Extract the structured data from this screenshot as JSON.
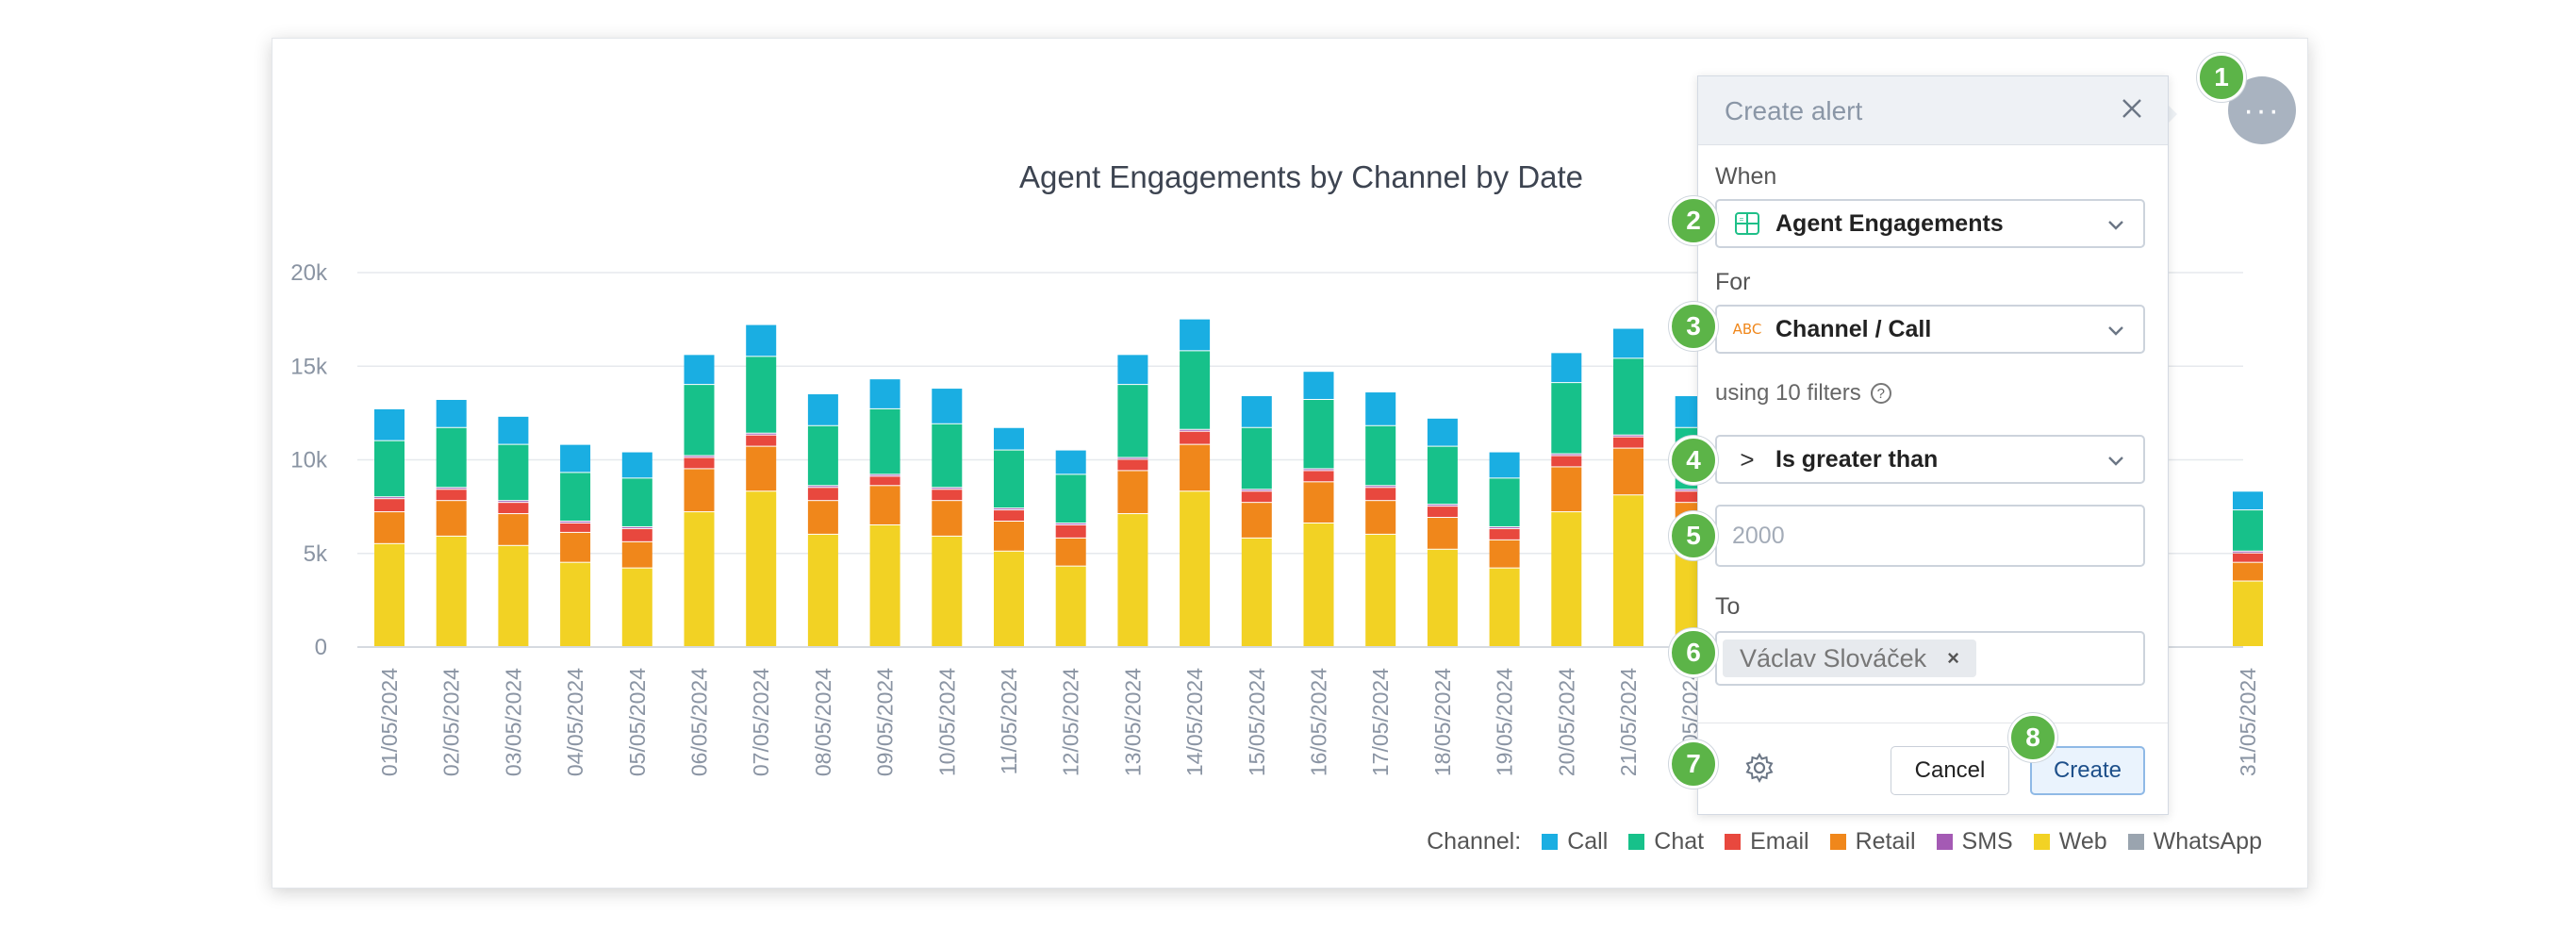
{
  "chart_data": {
    "type": "bar",
    "stacked": true,
    "title": "Agent Engagements by Channel by Date",
    "ylim": [
      0,
      20000
    ],
    "yticks": [
      "0",
      "5k",
      "10k",
      "15k",
      "20k"
    ],
    "categories": [
      "01/05/2024",
      "02/05/2024",
      "03/05/2024",
      "04/05/2024",
      "05/05/2024",
      "06/05/2024",
      "07/05/2024",
      "08/05/2024",
      "09/05/2024",
      "10/05/2024",
      "11/05/2024",
      "12/05/2024",
      "13/05/2024",
      "14/05/2024",
      "15/05/2024",
      "16/05/2024",
      "17/05/2024",
      "18/05/2024",
      "19/05/2024",
      "20/05/2024",
      "21/05/2024",
      "22/05/2024",
      "31/05/2024"
    ],
    "series": [
      {
        "name": "Web",
        "color": "#f2d224",
        "values": [
          5500,
          5900,
          5400,
          4500,
          4200,
          7200,
          8300,
          6000,
          6500,
          5900,
          5100,
          4300,
          7100,
          8300,
          5800,
          6600,
          6000,
          5200,
          4200,
          7200,
          8100,
          5900,
          3500
        ]
      },
      {
        "name": "Retail",
        "color": "#f0871b",
        "values": [
          1700,
          1900,
          1700,
          1600,
          1400,
          2300,
          2400,
          1800,
          2100,
          1900,
          1600,
          1500,
          2300,
          2500,
          1900,
          2200,
          1800,
          1700,
          1500,
          2400,
          2500,
          1800,
          1000
        ]
      },
      {
        "name": "Email",
        "color": "#e8483e",
        "values": [
          700,
          600,
          600,
          500,
          700,
          600,
          600,
          700,
          500,
          600,
          600,
          700,
          600,
          700,
          600,
          600,
          700,
          600,
          600,
          600,
          600,
          600,
          500
        ]
      },
      {
        "name": "SMS",
        "color": "#a45ab4",
        "values": [
          100,
          100,
          100,
          100,
          100,
          100,
          100,
          100,
          100,
          100,
          100,
          100,
          100,
          100,
          100,
          100,
          100,
          100,
          100,
          100,
          100,
          100,
          100
        ]
      },
      {
        "name": "Chat",
        "color": "#17c18a",
        "values": [
          3000,
          3200,
          3000,
          2600,
          2600,
          3800,
          4100,
          3200,
          3500,
          3400,
          3100,
          2600,
          3900,
          4200,
          3300,
          3700,
          3200,
          3100,
          2600,
          3800,
          4100,
          3300,
          2200
        ]
      },
      {
        "name": "Call",
        "color": "#1aaee2",
        "values": [
          1700,
          1500,
          1500,
          1500,
          1400,
          1600,
          1700,
          1700,
          1600,
          1900,
          1200,
          1300,
          1600,
          1700,
          1700,
          1500,
          1800,
          1500,
          1400,
          1600,
          1600,
          1700,
          1000
        ]
      },
      {
        "name": "WhatsApp",
        "color": "#9aa4af",
        "values": [
          0,
          0,
          0,
          0,
          0,
          0,
          0,
          0,
          0,
          0,
          0,
          0,
          0,
          0,
          0,
          0,
          0,
          0,
          0,
          0,
          0,
          0,
          0
        ]
      }
    ]
  },
  "legend": {
    "label": "Channel:",
    "items": [
      {
        "name": "Call",
        "color": "#1aaee2"
      },
      {
        "name": "Chat",
        "color": "#17c18a"
      },
      {
        "name": "Email",
        "color": "#e8483e"
      },
      {
        "name": "Retail",
        "color": "#f0871b"
      },
      {
        "name": "SMS",
        "color": "#a45ab4"
      },
      {
        "name": "Web",
        "color": "#f2d224"
      },
      {
        "name": "WhatsApp",
        "color": "#9aa4af"
      }
    ]
  },
  "menu_button": {
    "label": "···"
  },
  "alert": {
    "title": "Create alert",
    "close_icon": "close-icon",
    "when_label": "When",
    "when_value": "Agent Engagements",
    "for_label": "For",
    "for_value": "Channel / Call",
    "for_icon_text": "ABC",
    "filters_text": "using 10 filters",
    "help_icon_text": "?",
    "operator_symbol": ">",
    "operator_value": "Is greater than",
    "threshold_placeholder": "2000",
    "to_label": "To",
    "recipient": "Václav Slováček",
    "recipient_remove": "×",
    "cancel_label": "Cancel",
    "create_label": "Create"
  },
  "badges": [
    "1",
    "2",
    "3",
    "4",
    "5",
    "6",
    "7",
    "8"
  ]
}
